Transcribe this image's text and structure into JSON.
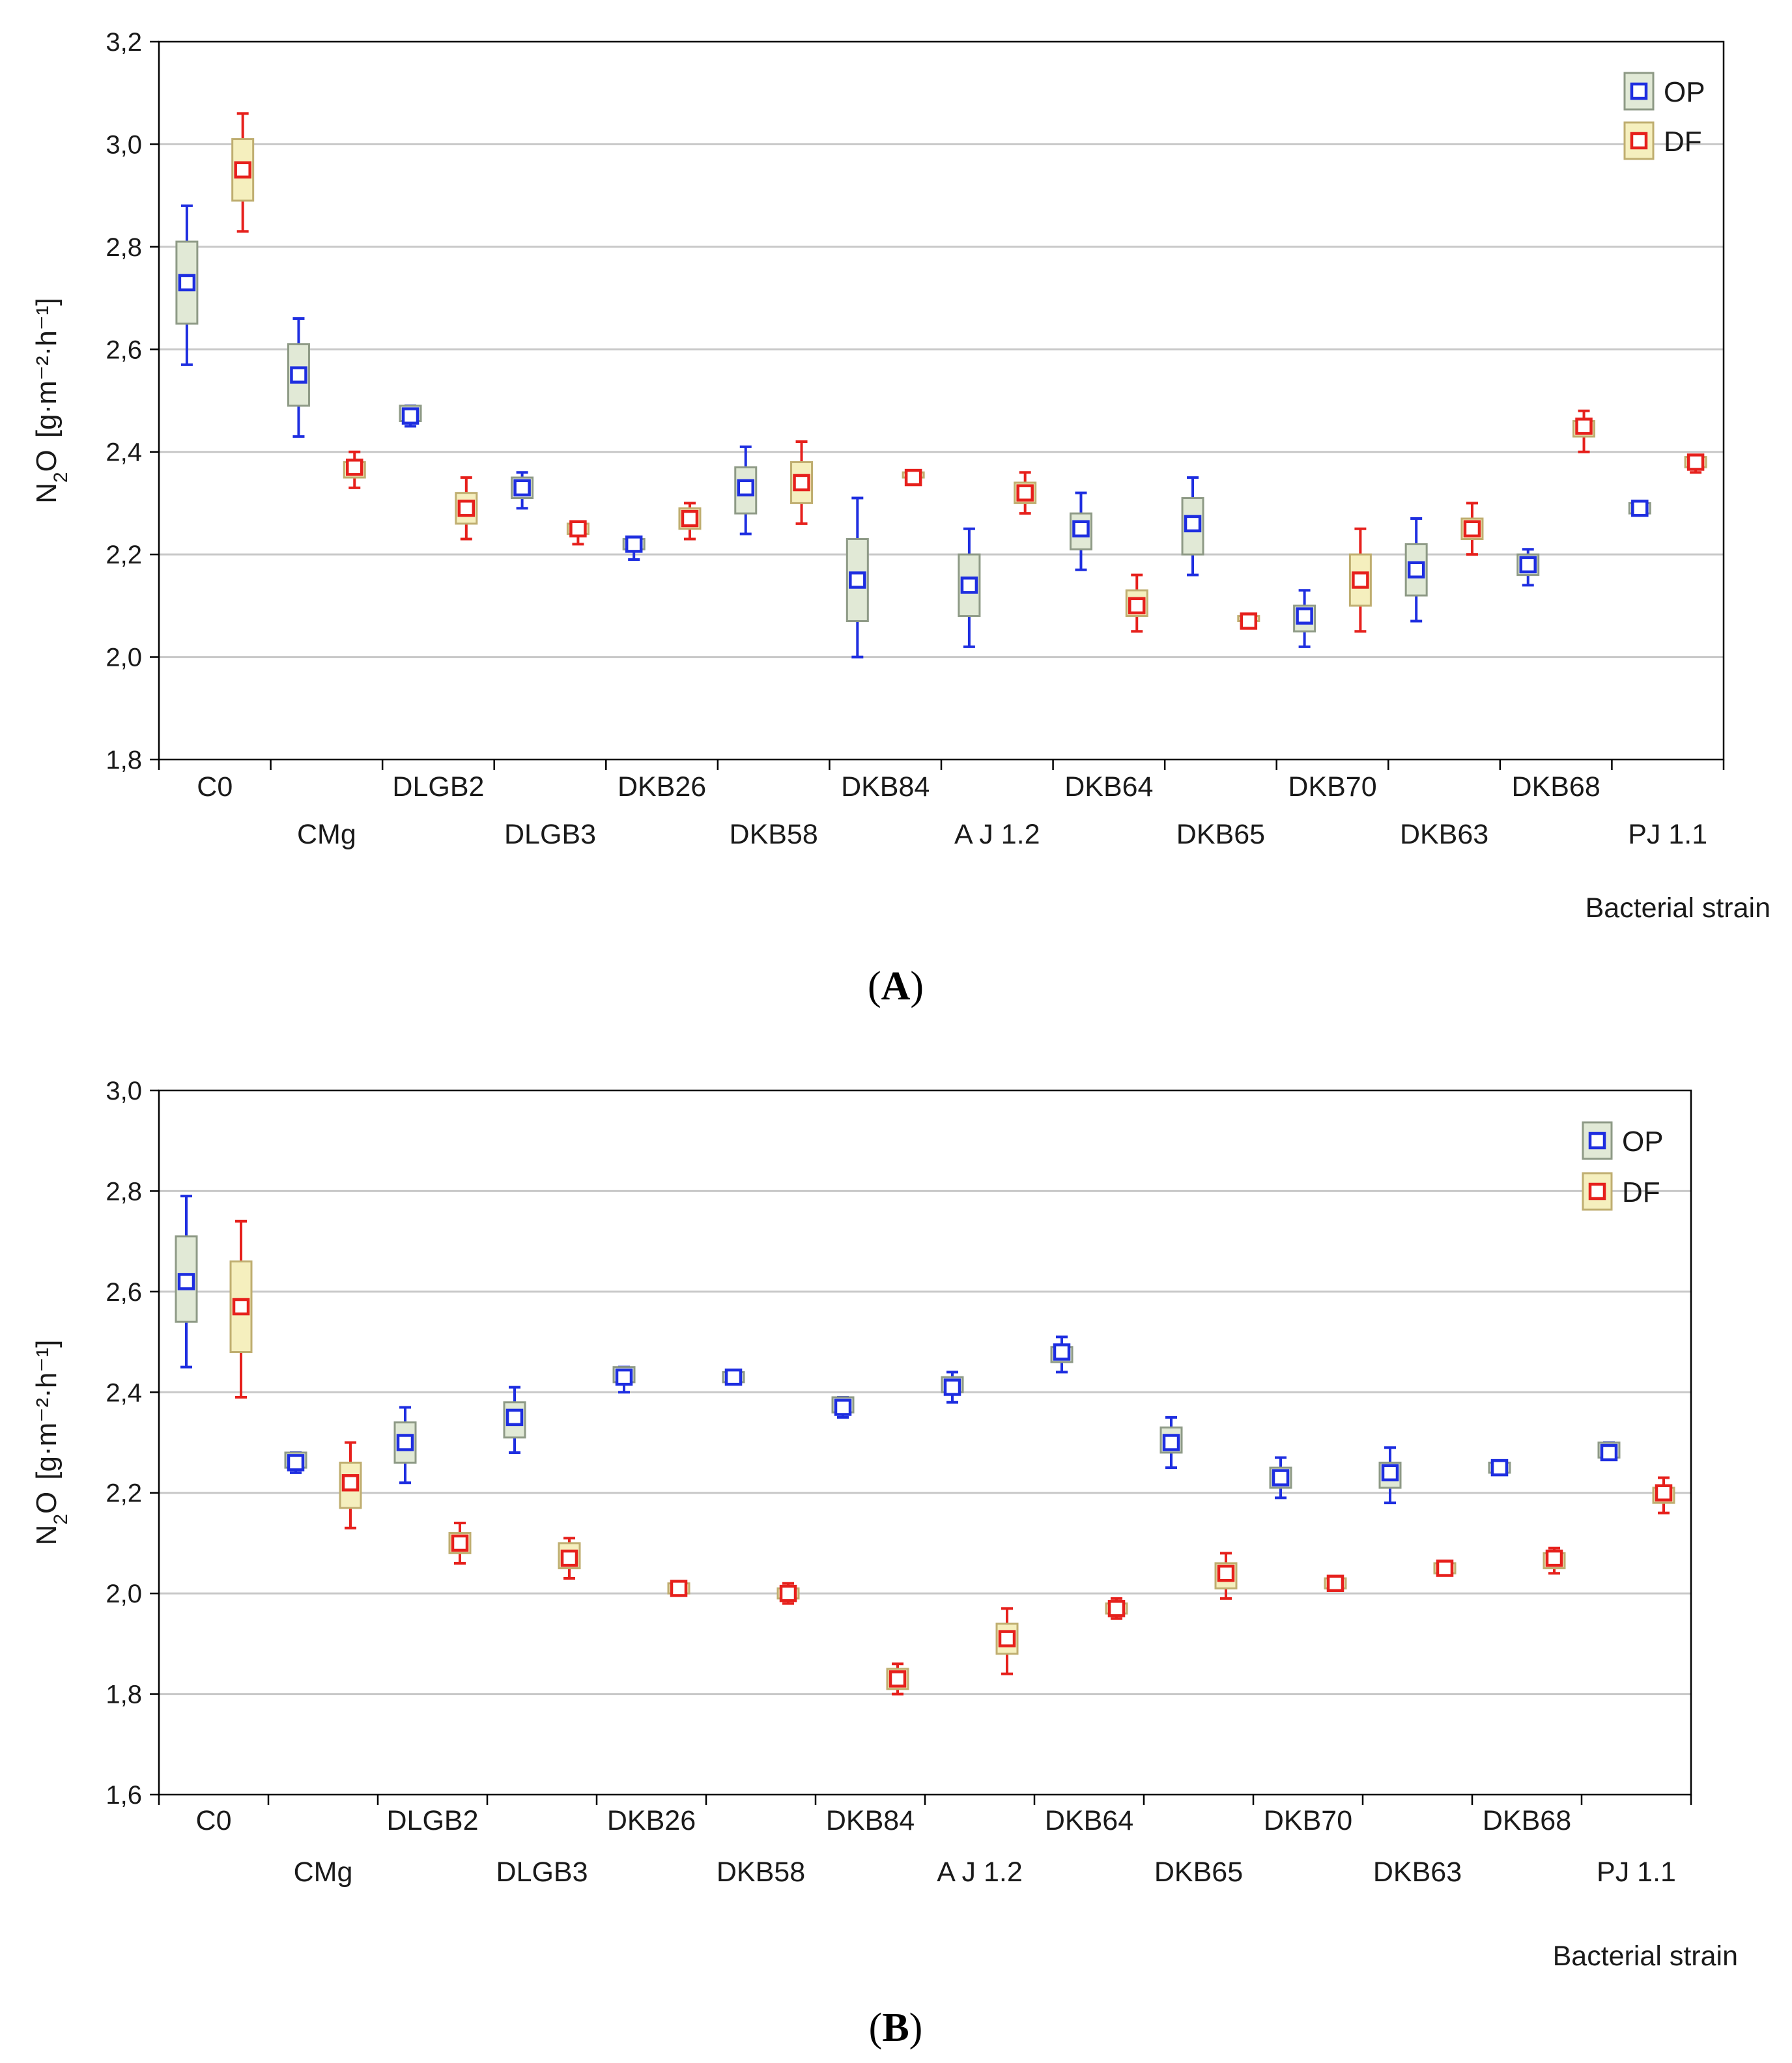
{
  "colors": {
    "op_whisker": "#1e2ee0",
    "op_box_fill": "#e1e9d6",
    "op_box_stroke": "#8e9a86",
    "df_whisker": "#e6201c",
    "df_box_fill": "#f5efbe",
    "df_box_stroke": "#bfae70",
    "gridline": "#c8c8c8",
    "axis": "#000000"
  },
  "chart_data": [
    {
      "type": "box",
      "panel_label": "A",
      "panel_label_paren_open": "(",
      "panel_label_paren_close": ")",
      "ylabel_main": "N",
      "ylabel_sub": "2",
      "ylabel_rest": "O",
      "ylabel_unit": "[g·m⁻²·h⁻¹]",
      "xlabel": "Bacterial strain",
      "ylim": [
        1.8,
        3.2
      ],
      "yticks": [
        1.8,
        2.0,
        2.2,
        2.4,
        2.6,
        2.8,
        3.0,
        3.2
      ],
      "ytick_labels": [
        "1,8",
        "2,0",
        "2,2",
        "2,4",
        "2,6",
        "2,8",
        "3,0",
        "3,2"
      ],
      "grid": true,
      "legend_position": "top-right",
      "categories": [
        "C0",
        "CMg",
        "DLGB2",
        "DLGB3",
        "DKB26",
        "DKB58",
        "DKB84",
        "A J 1.2",
        "DKB64",
        "DKB65",
        "DKB70",
        "DKB63",
        "DKB68",
        "PJ 1.1"
      ],
      "series": [
        {
          "name": "OP",
          "mean": [
            2.73,
            2.55,
            2.47,
            2.33,
            2.22,
            2.33,
            2.15,
            2.14,
            2.25,
            2.26,
            2.08,
            2.17,
            2.18,
            2.29
          ],
          "box_low": [
            2.65,
            2.49,
            2.46,
            2.31,
            2.21,
            2.28,
            2.07,
            2.08,
            2.21,
            2.2,
            2.05,
            2.12,
            2.16,
            2.28
          ],
          "box_high": [
            2.81,
            2.61,
            2.49,
            2.35,
            2.23,
            2.37,
            2.23,
            2.2,
            2.28,
            2.31,
            2.1,
            2.22,
            2.2,
            2.3
          ],
          "whisker_low": [
            2.57,
            2.43,
            2.45,
            2.29,
            2.19,
            2.24,
            2.0,
            2.02,
            2.17,
            2.16,
            2.02,
            2.07,
            2.14,
            2.28
          ],
          "whisker_high": [
            2.88,
            2.66,
            2.49,
            2.36,
            2.23,
            2.41,
            2.31,
            2.25,
            2.32,
            2.35,
            2.13,
            2.27,
            2.21,
            2.3
          ]
        },
        {
          "name": "DF",
          "mean": [
            2.95,
            2.37,
            2.29,
            2.25,
            2.27,
            2.34,
            2.35,
            2.32,
            2.1,
            2.07,
            2.15,
            2.25,
            2.45,
            2.38
          ],
          "box_low": [
            2.89,
            2.35,
            2.26,
            2.24,
            2.25,
            2.3,
            2.35,
            2.3,
            2.08,
            2.07,
            2.1,
            2.23,
            2.43,
            2.37
          ],
          "box_high": [
            3.01,
            2.38,
            2.32,
            2.26,
            2.29,
            2.38,
            2.36,
            2.34,
            2.13,
            2.08,
            2.2,
            2.27,
            2.46,
            2.39
          ],
          "whisker_low": [
            2.83,
            2.33,
            2.23,
            2.22,
            2.23,
            2.26,
            2.34,
            2.28,
            2.05,
            2.06,
            2.05,
            2.2,
            2.4,
            2.36
          ],
          "whisker_high": [
            3.06,
            2.4,
            2.35,
            2.26,
            2.3,
            2.42,
            2.36,
            2.36,
            2.16,
            2.08,
            2.25,
            2.3,
            2.48,
            2.39
          ]
        }
      ]
    },
    {
      "type": "box",
      "panel_label": "B",
      "panel_label_paren_open": "(",
      "panel_label_paren_close": ")",
      "ylabel_main": "N",
      "ylabel_sub": "2",
      "ylabel_rest": "O",
      "ylabel_unit": "[g·m⁻²·h⁻¹]",
      "xlabel": "Bacterial strain",
      "ylim": [
        1.6,
        3.0
      ],
      "yticks": [
        1.6,
        1.8,
        2.0,
        2.2,
        2.4,
        2.6,
        2.8,
        3.0
      ],
      "ytick_labels": [
        "1,6",
        "1,8",
        "2,0",
        "2,2",
        "2,4",
        "2,6",
        "2,8",
        "3,0"
      ],
      "grid": true,
      "legend_position": "top-right",
      "categories": [
        "C0",
        "CMg",
        "DLGB2",
        "DLGB3",
        "DKB26",
        "DKB58",
        "DKB84",
        "A J 1.2",
        "DKB64",
        "DKB65",
        "DKB70",
        "DKB63",
        "DKB68",
        "PJ 1.1"
      ],
      "series": [
        {
          "name": "OP",
          "mean": [
            2.62,
            2.26,
            2.3,
            2.35,
            2.43,
            2.43,
            2.37,
            2.41,
            2.48,
            2.3,
            2.23,
            2.24,
            2.25,
            2.28
          ],
          "box_low": [
            2.54,
            2.25,
            2.26,
            2.31,
            2.42,
            2.42,
            2.36,
            2.4,
            2.46,
            2.28,
            2.21,
            2.21,
            2.24,
            2.27
          ],
          "box_high": [
            2.71,
            2.28,
            2.34,
            2.38,
            2.45,
            2.44,
            2.39,
            2.43,
            2.49,
            2.33,
            2.25,
            2.26,
            2.26,
            2.3
          ],
          "whisker_low": [
            2.45,
            2.24,
            2.22,
            2.28,
            2.4,
            2.42,
            2.35,
            2.38,
            2.44,
            2.25,
            2.19,
            2.18,
            2.24,
            2.27
          ],
          "whisker_high": [
            2.79,
            2.28,
            2.37,
            2.41,
            2.45,
            2.44,
            2.39,
            2.44,
            2.51,
            2.35,
            2.27,
            2.29,
            2.26,
            2.3
          ]
        },
        {
          "name": "DF",
          "mean": [
            2.57,
            2.22,
            2.1,
            2.07,
            2.01,
            2.0,
            1.83,
            1.91,
            1.97,
            2.04,
            2.02,
            2.05,
            2.07,
            2.2
          ],
          "box_low": [
            2.48,
            2.17,
            2.08,
            2.05,
            2.0,
            1.99,
            1.81,
            1.88,
            1.96,
            2.01,
            2.01,
            2.04,
            2.05,
            2.18
          ],
          "box_high": [
            2.66,
            2.26,
            2.12,
            2.1,
            2.02,
            2.01,
            1.85,
            1.94,
            1.98,
            2.06,
            2.03,
            2.06,
            2.08,
            2.21
          ],
          "whisker_low": [
            2.39,
            2.13,
            2.06,
            2.03,
            2.0,
            1.98,
            1.8,
            1.84,
            1.95,
            1.99,
            2.01,
            2.04,
            2.04,
            2.16
          ],
          "whisker_high": [
            2.74,
            2.3,
            2.14,
            2.11,
            2.02,
            2.02,
            1.86,
            1.97,
            1.99,
            2.08,
            2.03,
            2.06,
            2.09,
            2.23
          ]
        }
      ]
    }
  ]
}
